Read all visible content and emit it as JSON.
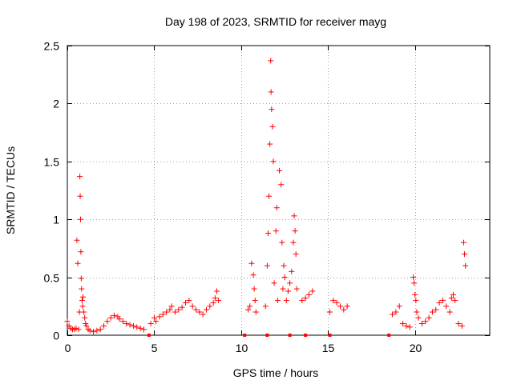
{
  "chart_data": {
    "type": "scatter",
    "title": "Day 198 of 2023, SRMTID for receiver mayg",
    "xlabel": "GPS time / hours",
    "ylabel": "SRMTID / TECUs",
    "xlim": [
      0,
      24.3
    ],
    "ylim": [
      0,
      2.5
    ],
    "x_ticks": [
      0,
      5,
      10,
      15,
      20
    ],
    "y_ticks": [
      0,
      0.5,
      1,
      1.5,
      2,
      2.5
    ],
    "x_tick_labels": [
      "0",
      "5",
      "10",
      "15",
      "20"
    ],
    "y_tick_labels": [
      "0",
      "0.5",
      "1",
      "1.5",
      "2",
      "2.5"
    ],
    "grid": true,
    "marker": "+",
    "marker_color": "#ff0000",
    "legend": "none",
    "gap_markers_x": [
      4.7,
      10.2,
      11.5,
      12.8,
      13.7,
      15.1,
      18.5
    ],
    "series": [
      {
        "name": "SRMTID",
        "x": [
          0.0,
          0.1,
          0.2,
          0.3,
          0.4,
          0.5,
          0.55,
          0.6,
          0.65,
          0.7,
          0.72,
          0.74,
          0.76,
          0.78,
          0.8,
          0.82,
          0.85,
          0.88,
          0.9,
          0.95,
          1.0,
          1.05,
          1.1,
          1.2,
          1.3,
          1.5,
          1.7,
          1.9,
          2.1,
          2.3,
          2.5,
          2.7,
          2.9,
          3.0,
          3.2,
          3.4,
          3.6,
          3.8,
          4.0,
          4.2,
          4.4,
          4.8,
          5.0,
          5.1,
          5.3,
          5.5,
          5.7,
          5.9,
          6.0,
          6.2,
          6.4,
          6.6,
          6.8,
          7.0,
          7.2,
          7.4,
          7.6,
          7.8,
          8.0,
          8.2,
          8.4,
          8.5,
          8.6,
          8.7,
          10.4,
          10.5,
          10.6,
          10.7,
          10.75,
          10.8,
          10.85,
          11.4,
          11.5,
          11.55,
          11.6,
          11.65,
          11.7,
          11.72,
          11.75,
          11.8,
          11.85,
          11.9,
          12.0,
          12.05,
          12.1,
          12.2,
          12.3,
          12.35,
          12.4,
          12.45,
          12.5,
          12.6,
          12.7,
          12.8,
          12.9,
          13.0,
          13.05,
          13.1,
          13.15,
          13.2,
          13.5,
          13.7,
          13.9,
          14.1,
          15.1,
          15.3,
          15.5,
          15.7,
          15.9,
          16.1,
          18.7,
          18.9,
          19.1,
          19.3,
          19.5,
          19.7,
          19.9,
          19.95,
          20.0,
          20.05,
          20.1,
          20.2,
          20.4,
          20.6,
          20.8,
          21.0,
          21.2,
          21.4,
          21.6,
          21.8,
          22.0,
          22.1,
          22.2,
          22.3,
          22.5,
          22.7,
          22.8,
          22.85,
          22.9
        ],
        "y": [
          0.12,
          0.08,
          0.06,
          0.05,
          0.05,
          0.06,
          0.82,
          0.62,
          0.05,
          0.2,
          1.37,
          1.2,
          1.0,
          0.72,
          0.49,
          0.4,
          0.3,
          0.25,
          0.33,
          0.2,
          0.15,
          0.1,
          0.08,
          0.05,
          0.04,
          0.03,
          0.04,
          0.05,
          0.08,
          0.12,
          0.15,
          0.17,
          0.16,
          0.14,
          0.12,
          0.1,
          0.09,
          0.08,
          0.07,
          0.06,
          0.05,
          0.1,
          0.15,
          0.12,
          0.16,
          0.18,
          0.2,
          0.22,
          0.25,
          0.2,
          0.22,
          0.24,
          0.28,
          0.3,
          0.25,
          0.22,
          0.2,
          0.18,
          0.22,
          0.25,
          0.28,
          0.32,
          0.38,
          0.3,
          0.22,
          0.25,
          0.62,
          0.52,
          0.4,
          0.3,
          0.2,
          0.25,
          0.6,
          0.88,
          1.2,
          1.65,
          2.37,
          2.1,
          1.95,
          1.8,
          1.5,
          0.45,
          0.9,
          1.1,
          0.3,
          1.42,
          1.3,
          0.8,
          0.4,
          0.6,
          0.5,
          0.3,
          0.38,
          0.45,
          0.55,
          0.8,
          1.03,
          0.9,
          0.7,
          0.4,
          0.3,
          0.32,
          0.35,
          0.38,
          0.2,
          0.3,
          0.28,
          0.25,
          0.22,
          0.25,
          0.18,
          0.2,
          0.25,
          0.1,
          0.08,
          0.07,
          0.5,
          0.45,
          0.35,
          0.3,
          0.2,
          0.15,
          0.1,
          0.12,
          0.15,
          0.2,
          0.22,
          0.28,
          0.3,
          0.25,
          0.2,
          0.32,
          0.35,
          0.3,
          0.1,
          0.08,
          0.8,
          0.7,
          0.6
        ]
      }
    ]
  }
}
